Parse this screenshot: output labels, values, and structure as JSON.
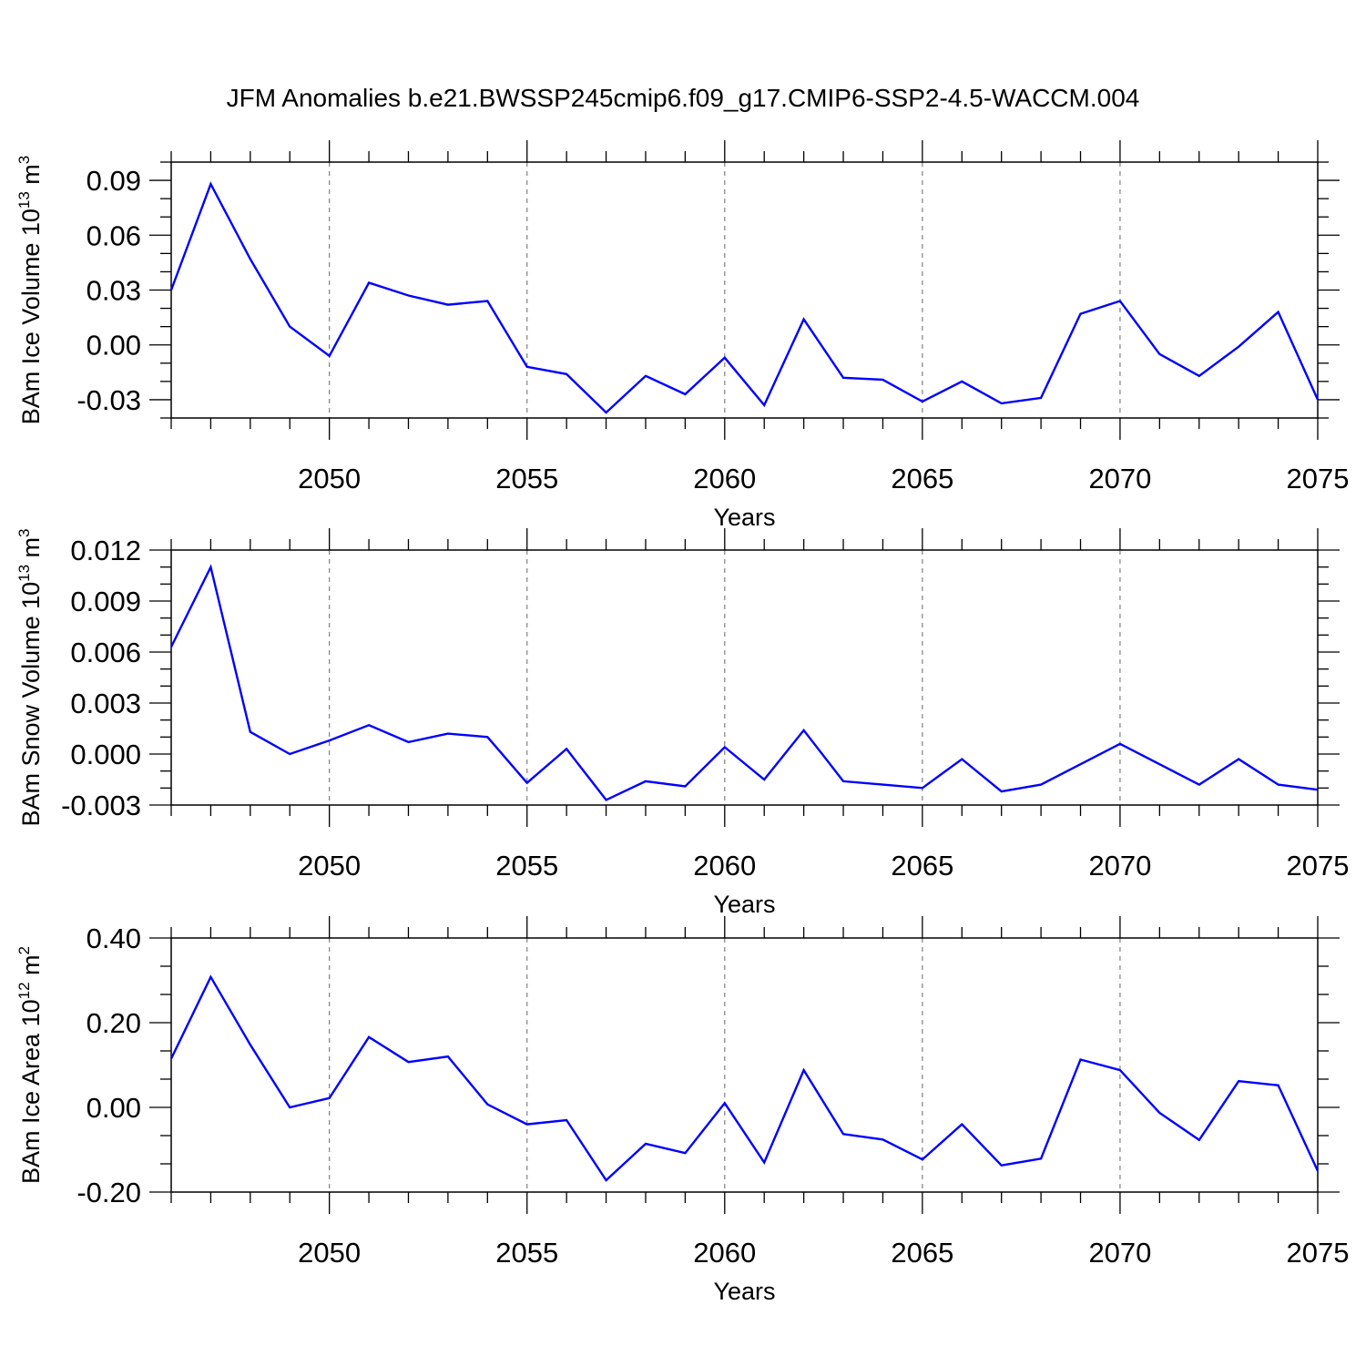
{
  "title": "JFM Anomalies b.e21.BWSSP245cmip6.f09_g17.CMIP6-SSP2-4.5-WACCM.004",
  "colors": {
    "line": "#0000ff",
    "axes": "#000000",
    "grid": "#808080"
  },
  "chart_data": [
    {
      "type": "line",
      "xlabel": "Years",
      "ylabel": {
        "text": "BAm Ice Volume 10",
        "exp": "13",
        "unit": " m",
        "unit_exp": "3"
      },
      "x": [
        2046,
        2047,
        2048,
        2049,
        2050,
        2051,
        2052,
        2053,
        2054,
        2055,
        2056,
        2057,
        2058,
        2059,
        2060,
        2061,
        2062,
        2063,
        2064,
        2065,
        2066,
        2067,
        2068,
        2069,
        2070,
        2071,
        2072,
        2073,
        2074,
        2075
      ],
      "series": [
        {
          "values": [
            0.03,
            0.088,
            0.047,
            0.01,
            -0.006,
            0.034,
            0.027,
            0.022,
            0.024,
            -0.012,
            -0.016,
            -0.037,
            -0.017,
            -0.027,
            -0.007,
            -0.033,
            0.014,
            -0.018,
            -0.019,
            -0.031,
            -0.02,
            -0.032,
            -0.029,
            0.017,
            0.024,
            -0.005,
            -0.017,
            -0.001,
            0.018,
            -0.03
          ]
        }
      ],
      "xlim": [
        2046,
        2075
      ],
      "ylim": [
        -0.04,
        0.1
      ],
      "xticks": [
        2050,
        2055,
        2060,
        2065,
        2070,
        2075
      ],
      "yticks": [
        -0.03,
        0.0,
        0.03,
        0.06,
        0.09
      ],
      "ytick_labels": [
        "-0.03",
        "0.00",
        "0.03",
        "0.06",
        "0.09"
      ],
      "grid": "vertical dashed at labeled years"
    },
    {
      "type": "line",
      "xlabel": "Years",
      "ylabel": {
        "text": "BAm Snow Volume 10",
        "exp": "13",
        "unit": " m",
        "unit_exp": "3"
      },
      "x": [
        2046,
        2047,
        2048,
        2049,
        2050,
        2051,
        2052,
        2053,
        2054,
        2055,
        2056,
        2057,
        2058,
        2059,
        2060,
        2061,
        2062,
        2063,
        2064,
        2065,
        2066,
        2067,
        2068,
        2069,
        2070,
        2071,
        2072,
        2073,
        2074,
        2075
      ],
      "series": [
        {
          "values": [
            0.0063,
            0.011,
            0.0013,
            0.0,
            0.0008,
            0.0017,
            0.0007,
            0.0012,
            0.001,
            -0.0017,
            0.0003,
            -0.0027,
            -0.0016,
            -0.0019,
            0.0004,
            -0.0015,
            0.0014,
            -0.0016,
            -0.0018,
            -0.002,
            -0.0003,
            -0.0022,
            -0.0018,
            -0.0006,
            0.0006,
            -0.0006,
            -0.0018,
            -0.0003,
            -0.0018,
            -0.0021
          ]
        }
      ],
      "xlim": [
        2046,
        2075
      ],
      "ylim": [
        -0.003,
        0.012
      ],
      "xticks": [
        2050,
        2055,
        2060,
        2065,
        2070,
        2075
      ],
      "yticks": [
        -0.003,
        0.0,
        0.003,
        0.006,
        0.009,
        0.012
      ],
      "ytick_labels": [
        "-0.003",
        "0.000",
        "0.003",
        "0.006",
        "0.009",
        "0.012"
      ],
      "grid": "vertical dashed at labeled years"
    },
    {
      "type": "line",
      "xlabel": "Years",
      "ylabel": {
        "text": "BAm Ice Area 10",
        "exp": "12",
        "unit": " m",
        "unit_exp": "2"
      },
      "x": [
        2046,
        2047,
        2048,
        2049,
        2050,
        2051,
        2052,
        2053,
        2054,
        2055,
        2056,
        2057,
        2058,
        2059,
        2060,
        2061,
        2062,
        2063,
        2064,
        2065,
        2066,
        2067,
        2068,
        2069,
        2070,
        2071,
        2072,
        2073,
        2074,
        2075
      ],
      "series": [
        {
          "values": [
            0.115,
            0.308,
            0.148,
            0.0,
            0.022,
            0.166,
            0.107,
            0.12,
            0.007,
            -0.04,
            -0.03,
            -0.172,
            -0.086,
            -0.108,
            0.01,
            -0.13,
            0.088,
            -0.063,
            -0.076,
            -0.123,
            -0.04,
            -0.137,
            -0.121,
            0.113,
            0.088,
            -0.013,
            -0.077,
            0.062,
            0.052,
            -0.15
          ]
        }
      ],
      "xlim": [
        2046,
        2075
      ],
      "ylim": [
        -0.2,
        0.4
      ],
      "xticks": [
        2050,
        2055,
        2060,
        2065,
        2070,
        2075
      ],
      "yticks": [
        -0.2,
        0.0,
        0.2,
        0.4
      ],
      "ytick_labels": [
        "-0.20",
        "0.00",
        "0.20",
        "0.40"
      ],
      "grid": "vertical dashed at labeled years"
    }
  ]
}
